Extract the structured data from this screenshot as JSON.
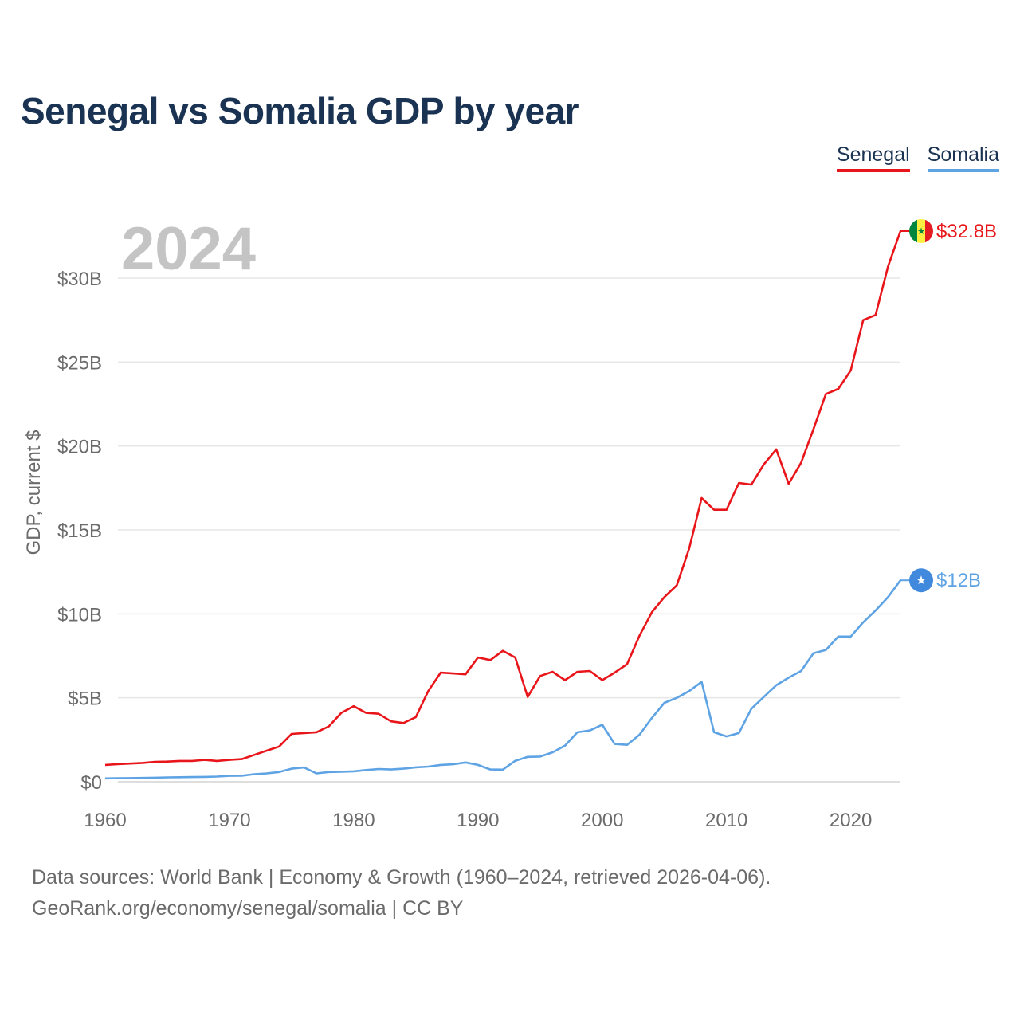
{
  "title": "Senegal vs Somalia GDP by year",
  "year_label": "2024",
  "legend": [
    {
      "name": "Senegal",
      "color": "#e8161b"
    },
    {
      "name": "Somalia",
      "color": "#5ea3e4"
    }
  ],
  "footer": {
    "line1": "Data sources: World Bank | Economy & Growth (1960–2024, retrieved 2026-04-06).",
    "line2": "GeoRank.org/economy/senegal/somalia | CC BY"
  },
  "chart_data": {
    "type": "line",
    "title": "Senegal vs Somalia GDP by year",
    "xlabel": "",
    "ylabel": "GDP, current $",
    "xlim": [
      1960,
      2024
    ],
    "ylim": [
      0,
      32.8
    ],
    "y_unit": "billion USD",
    "x_ticks": [
      1960,
      1970,
      1980,
      1990,
      2000,
      2010,
      2020
    ],
    "y_ticks": [
      {
        "value": 0,
        "label": "$0"
      },
      {
        "value": 5,
        "label": "$5B"
      },
      {
        "value": 10,
        "label": "$10B"
      },
      {
        "value": 15,
        "label": "$15B"
      },
      {
        "value": 20,
        "label": "$20B"
      },
      {
        "value": 25,
        "label": "$25B"
      },
      {
        "value": 30,
        "label": "$30B"
      }
    ],
    "grid": true,
    "x": [
      1960,
      1961,
      1962,
      1963,
      1964,
      1965,
      1966,
      1967,
      1968,
      1969,
      1970,
      1971,
      1972,
      1973,
      1974,
      1975,
      1976,
      1977,
      1978,
      1979,
      1980,
      1981,
      1982,
      1983,
      1984,
      1985,
      1986,
      1987,
      1988,
      1989,
      1990,
      1991,
      1992,
      1993,
      1994,
      1995,
      1996,
      1997,
      1998,
      1999,
      2000,
      2001,
      2002,
      2003,
      2004,
      2005,
      2006,
      2007,
      2008,
      2009,
      2010,
      2011,
      2012,
      2013,
      2014,
      2015,
      2016,
      2017,
      2018,
      2019,
      2020,
      2021,
      2022,
      2023,
      2024
    ],
    "series": [
      {
        "name": "Senegal",
        "color": "#e8161b",
        "end_label": "$32.8B",
        "values": [
          1.0,
          1.05,
          1.08,
          1.12,
          1.18,
          1.2,
          1.24,
          1.24,
          1.3,
          1.24,
          1.3,
          1.35,
          1.6,
          1.85,
          2.1,
          2.85,
          2.9,
          2.95,
          3.3,
          4.1,
          4.5,
          4.1,
          4.05,
          3.6,
          3.5,
          3.85,
          5.4,
          6.5,
          6.45,
          6.4,
          7.4,
          7.25,
          7.8,
          7.4,
          5.05,
          6.3,
          6.55,
          6.05,
          6.55,
          6.6,
          6.05,
          6.5,
          7.0,
          8.7,
          10.1,
          11.0,
          11.7,
          13.9,
          16.9,
          16.2,
          16.2,
          17.8,
          17.7,
          18.9,
          19.8,
          17.75,
          19.0,
          21.0,
          23.1,
          23.4,
          24.5,
          27.5,
          27.8,
          30.7,
          32.8
        ]
      },
      {
        "name": "Somalia",
        "color": "#5ea3e4",
        "end_label": "$12B",
        "values": [
          0.2,
          0.21,
          0.22,
          0.23,
          0.24,
          0.26,
          0.27,
          0.28,
          0.29,
          0.31,
          0.35,
          0.36,
          0.45,
          0.5,
          0.58,
          0.78,
          0.85,
          0.5,
          0.58,
          0.6,
          0.62,
          0.7,
          0.76,
          0.73,
          0.78,
          0.86,
          0.9,
          1.0,
          1.04,
          1.15,
          1.0,
          0.73,
          0.72,
          1.25,
          1.48,
          1.5,
          1.75,
          2.15,
          2.95,
          3.05,
          3.4,
          2.25,
          2.2,
          2.8,
          3.8,
          4.7,
          5.0,
          5.4,
          5.95,
          2.95,
          2.7,
          2.9,
          4.35,
          5.05,
          5.75,
          6.2,
          6.6,
          7.65,
          7.85,
          8.65,
          8.65,
          9.5,
          10.2,
          11.0,
          12.0
        ]
      }
    ]
  }
}
